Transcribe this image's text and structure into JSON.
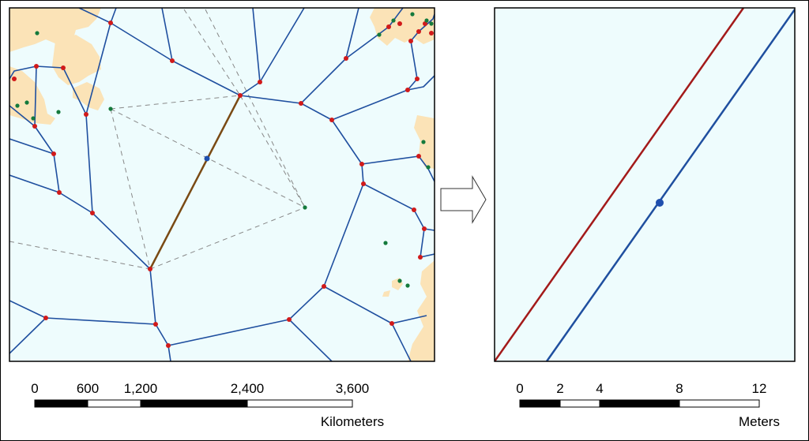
{
  "colors": {
    "water": "#eefcfd",
    "land": "#fbe3b7",
    "voronoi_edge": "#1f4f9f",
    "vertex": "#d11a1a",
    "site": "#147a3c",
    "highlight_edge": "#7a4a14",
    "dashed": "#888888",
    "red_line": "#a31a1a",
    "blue_line": "#1f4f9f",
    "point": "#1f4fae"
  },
  "left_panel": {
    "scalebar": {
      "ticks": [
        "0",
        "600",
        "1,200",
        "2,400",
        "3,600"
      ],
      "unit": "Kilometers"
    }
  },
  "arrow": {
    "icon": "right-arrow-icon"
  },
  "right_panel": {
    "scalebar": {
      "ticks": [
        "0",
        "2",
        "4",
        "8",
        "12"
      ],
      "unit": "Meters"
    }
  }
}
